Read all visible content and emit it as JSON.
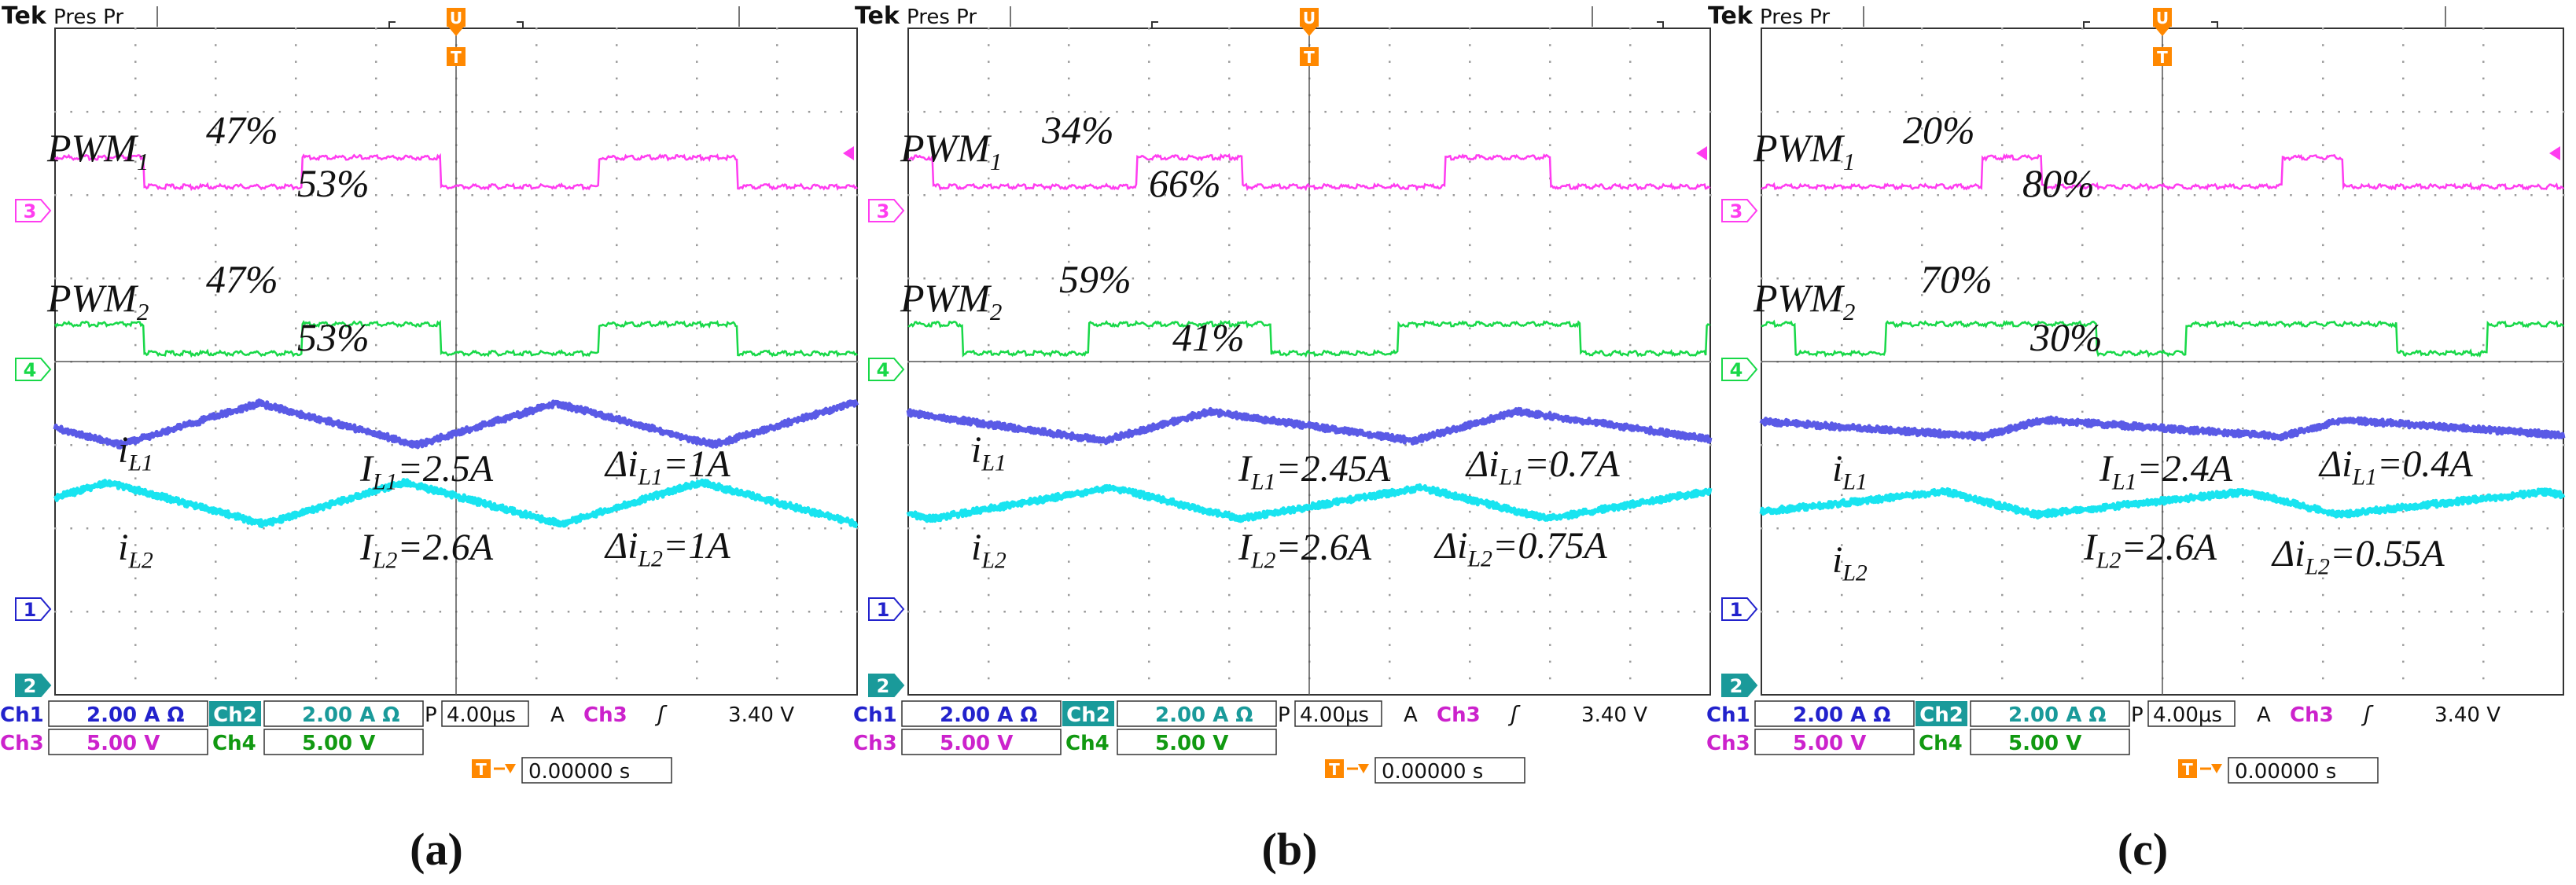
{
  "figure": {
    "panels": [
      {
        "caption": "(a)",
        "header": {
          "brand": "Tek",
          "mode": "Pres Pr"
        },
        "readout": {
          "ch1": {
            "label": "Ch1",
            "value": "2.00 A Ω"
          },
          "ch2": {
            "label": "Ch2",
            "value": "2.00 A Ω"
          },
          "ch3": {
            "label": "Ch3",
            "value": "5.00 V"
          },
          "ch4": {
            "label": "Ch4",
            "value": "5.00 V"
          },
          "timebase": {
            "label": "P",
            "value": "4.00μs"
          },
          "trigger": {
            "label": "A",
            "channel": "Ch3",
            "slope": "ʃ",
            "level": "3.40 V"
          },
          "delay": "0.00000 s"
        },
        "annotations": {
          "pwm1": {
            "name": "PWM",
            "sub": "1",
            "high": "47%",
            "low": "53%"
          },
          "pwm2": {
            "name": "PWM",
            "sub": "2",
            "high": "47%",
            "low": "53%"
          },
          "il1": {
            "name": "i",
            "sub": "L1",
            "avg_label": "I",
            "avg_sub": "L1",
            "avg_value": "=2.5A",
            "ripple_label": "Δi",
            "ripple_sub": "L1",
            "ripple_value": "=1A"
          },
          "il2": {
            "name": "i",
            "sub": "L2",
            "avg_label": "I",
            "avg_sub": "L2",
            "avg_value": "=2.6A",
            "ripple_label": "Δi",
            "ripple_sub": "L2",
            "ripple_value": "=1A"
          }
        }
      },
      {
        "caption": "(b)",
        "header": {
          "brand": "Tek",
          "mode": "Pres Pr"
        },
        "readout": {
          "ch1": {
            "label": "Ch1",
            "value": "2.00 A Ω"
          },
          "ch2": {
            "label": "Ch2",
            "value": "2.00 A Ω"
          },
          "ch3": {
            "label": "Ch3",
            "value": "5.00 V"
          },
          "ch4": {
            "label": "Ch4",
            "value": "5.00 V"
          },
          "timebase": {
            "label": "P",
            "value": "4.00μs"
          },
          "trigger": {
            "label": "A",
            "channel": "Ch3",
            "slope": "ʃ",
            "level": "3.40 V"
          },
          "delay": "0.00000 s"
        },
        "annotations": {
          "pwm1": {
            "name": "PWM",
            "sub": "1",
            "high": "34%",
            "low": "66%"
          },
          "pwm2": {
            "name": "PWM",
            "sub": "2",
            "high": "59%",
            "low": "41%"
          },
          "il1": {
            "name": "i",
            "sub": "L1",
            "avg_label": "I",
            "avg_sub": "L1",
            "avg_value": "=2.45A",
            "ripple_label": "Δi",
            "ripple_sub": "L1",
            "ripple_value": "=0.7A"
          },
          "il2": {
            "name": "i",
            "sub": "L2",
            "avg_label": "I",
            "avg_sub": "L2",
            "avg_value": "=2.6A",
            "ripple_label": "Δi",
            "ripple_sub": "L2",
            "ripple_value": "=0.75A"
          }
        }
      },
      {
        "caption": "(c)",
        "header": {
          "brand": "Tek",
          "mode": "Pres Pr"
        },
        "readout": {
          "ch1": {
            "label": "Ch1",
            "value": "2.00 A Ω"
          },
          "ch2": {
            "label": "Ch2",
            "value": "2.00 A Ω"
          },
          "ch3": {
            "label": "Ch3",
            "value": "5.00 V"
          },
          "ch4": {
            "label": "Ch4",
            "value": "5.00 V"
          },
          "timebase": {
            "label": "P",
            "value": "4.00μs"
          },
          "trigger": {
            "label": "A",
            "channel": "Ch3",
            "slope": "ʃ",
            "level": "3.40 V"
          },
          "delay": "0.00000 s"
        },
        "annotations": {
          "pwm1": {
            "name": "PWM",
            "sub": "1",
            "high": "20%",
            "low": "80%"
          },
          "pwm2": {
            "name": "PWM",
            "sub": "2",
            "high": "70%",
            "low": "30%"
          },
          "il1": {
            "name": "i",
            "sub": "L1",
            "avg_label": "I",
            "avg_sub": "L1",
            "avg_value": "=2.4A",
            "ripple_label": "Δi",
            "ripple_sub": "L1",
            "ripple_value": "=0.4A"
          },
          "il2": {
            "name": "i",
            "sub": "L2",
            "avg_label": "I",
            "avg_sub": "L2",
            "avg_value": "=2.6A",
            "ripple_label": "Δi",
            "ripple_sub": "L2",
            "ripple_value": "=0.55A"
          }
        }
      }
    ]
  },
  "colors": {
    "pwm1": "#ff3cf0",
    "pwm2": "#18d848",
    "il1": "#5a5ae6",
    "il2": "#18e4f0",
    "ch1_text": "#2222cc",
    "ch2_badge": "#1a9a9a",
    "ch3_text": "#cc22cc",
    "ch4_text": "#119911",
    "trigger_marker": "#ff8800",
    "grid": "#9a9a9a",
    "record_bar": "#22a6c8"
  },
  "channel_markers": {
    "ch3": "3",
    "ch4": "4",
    "ch1": "1",
    "ch2": "2",
    "trigger_T": "T",
    "trigger_U": "U"
  },
  "chart_data": [
    {
      "type": "line",
      "x_unit": "μs",
      "x_range": [
        0,
        40
      ],
      "series": [
        {
          "name": "PWM1",
          "kind": "square",
          "period_us": 14.8,
          "duty": 0.47,
          "first_rise_us": 12.3,
          "amplitude_div": 0.35,
          "baseline_div": 1.9
        },
        {
          "name": "PWM2",
          "kind": "square",
          "period_us": 14.8,
          "duty": 0.47,
          "first_rise_us": 12.3,
          "amplitude_div": 0.35,
          "baseline_div": 3.9
        },
        {
          "name": "iL1",
          "kind": "triangle",
          "mean_A": 2.5,
          "ripple_A": 1.0,
          "period_us": 14.8,
          "peak_us": 10.2,
          "duty": 0.47,
          "volts_per_div_A": 2.0,
          "zero_div": 6.0
        },
        {
          "name": "iL2",
          "kind": "triangle",
          "mean_A": 2.6,
          "ripple_A": 1.0,
          "period_us": 14.8,
          "peak_us": 17.4,
          "duty": 0.47,
          "volts_per_div_A": 2.0,
          "zero_div": 7.0
        }
      ]
    },
    {
      "type": "line",
      "x_unit": "μs",
      "x_range": [
        0,
        40
      ],
      "series": [
        {
          "name": "PWM1",
          "kind": "square",
          "period_us": 15.4,
          "duty": 0.34,
          "first_rise_us": 11.4,
          "amplitude_div": 0.35,
          "baseline_div": 1.9
        },
        {
          "name": "PWM2",
          "kind": "square",
          "period_us": 15.4,
          "duty": 0.59,
          "first_rise_us": 9.0,
          "amplitude_div": 0.35,
          "baseline_div": 3.9
        },
        {
          "name": "iL1",
          "kind": "triangle",
          "mean_A": 2.45,
          "ripple_A": 0.7,
          "period_us": 15.4,
          "peak_us": 15.0,
          "duty": 0.34,
          "volts_per_div_A": 2.0,
          "zero_div": 6.0
        },
        {
          "name": "iL2",
          "kind": "triangle",
          "mean_A": 2.6,
          "ripple_A": 0.75,
          "period_us": 15.4,
          "peak_us": 10.2,
          "duty": 0.59,
          "volts_per_div_A": 2.0,
          "zero_div": 7.0
        }
      ]
    },
    {
      "type": "line",
      "x_unit": "μs",
      "x_range": [
        0,
        40
      ],
      "series": [
        {
          "name": "PWM1",
          "kind": "square",
          "period_us": 15.0,
          "duty": 0.2,
          "first_rise_us": 11.0,
          "amplitude_div": 0.35,
          "baseline_div": 1.9
        },
        {
          "name": "PWM2",
          "kind": "square",
          "period_us": 15.0,
          "duty": 0.7,
          "first_rise_us": 6.2,
          "amplitude_div": 0.35,
          "baseline_div": 3.9
        },
        {
          "name": "iL1",
          "kind": "triangle",
          "mean_A": 2.4,
          "ripple_A": 0.4,
          "period_us": 15.0,
          "peak_us": 14.0,
          "duty": 0.2,
          "volts_per_div_A": 2.0,
          "zero_div": 6.0
        },
        {
          "name": "iL2",
          "kind": "triangle",
          "mean_A": 2.6,
          "ripple_A": 0.55,
          "period_us": 15.0,
          "peak_us": 9.2,
          "duty": 0.7,
          "volts_per_div_A": 2.0,
          "zero_div": 7.0
        }
      ]
    }
  ]
}
